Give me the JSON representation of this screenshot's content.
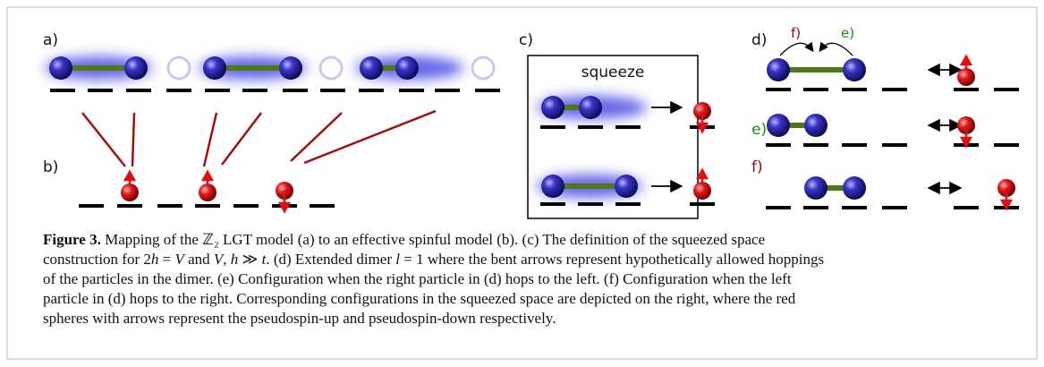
{
  "panels": {
    "a": "a)",
    "b": "b)",
    "c": "c)",
    "d": "d)",
    "e": "e)",
    "f": "f)"
  },
  "squeeze_label": "squeeze",
  "hop_labels": {
    "f": "f)",
    "e": "e)"
  },
  "caption": {
    "lines": [
      [
        {
          "text": "Figure 3.",
          "style": "bold"
        },
        {
          "text": " Mapping of the ℤ₂ LGT model (a) to an effective spinful model (b). (c) The definition of the squeezed space"
        }
      ],
      [
        {
          "text": "construction for 2"
        },
        {
          "text": "h",
          "style": "italic"
        },
        {
          "text": " = "
        },
        {
          "text": "V",
          "style": "italic"
        },
        {
          "text": " and "
        },
        {
          "text": "V",
          "style": "italic"
        },
        {
          "text": ", "
        },
        {
          "text": "h",
          "style": "italic"
        },
        {
          "text": " ≫ "
        },
        {
          "text": "t",
          "style": "italic"
        },
        {
          "text": ". (d) Extended dimer "
        },
        {
          "text": "l",
          "style": "italic"
        },
        {
          "text": " = 1 where the bent arrows represent hypothetically allowed hoppings"
        }
      ],
      [
        {
          "text": "of the particles in the dimer. (e) Configuration when the right particle in (d) hops to the left. (f) Configuration when the left"
        }
      ],
      [
        {
          "text": "particle in (d) hops to the right. Corresponding configurations in the squeezed space are depicted on the right, where the red"
        }
      ],
      [
        {
          "text": "spheres with arrows represent the pseudospin-up and pseudospin-down respectively."
        }
      ]
    ]
  }
}
